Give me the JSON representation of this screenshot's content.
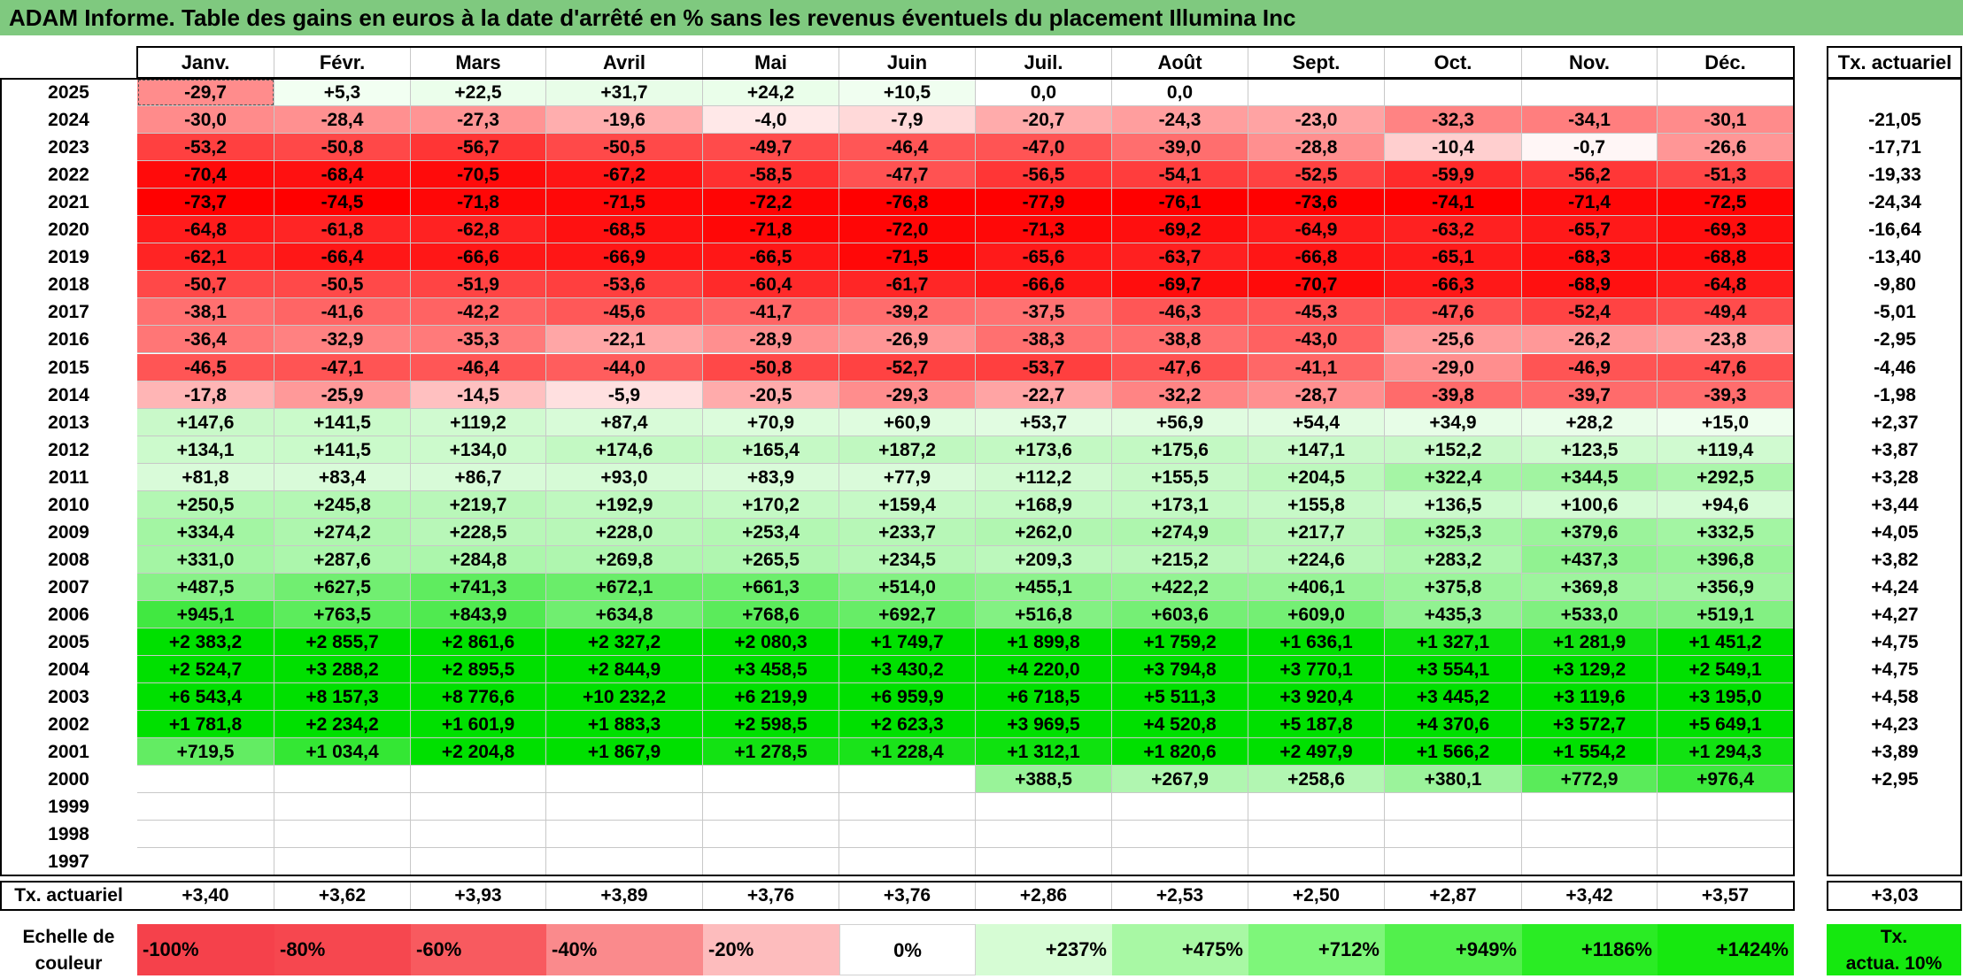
{
  "title": "ADAM Informe. Table des gains en euros à la date d'arrêté en % sans les revenus éventuels du placement Illumina Inc",
  "months": [
    "Janv.",
    "Févr.",
    "Mars",
    "Avril",
    "Mai",
    "Juin",
    "Juil.",
    "Août",
    "Sept.",
    "Oct.",
    "Nov.",
    "Déc."
  ],
  "rate_header": "Tx. actuariel",
  "rows": [
    {
      "year": "2025",
      "values": [
        "-29,7",
        "+5,3",
        "+22,5",
        "+31,7",
        "+24,2",
        "+10,5",
        "0,0",
        "0,0",
        "",
        "",
        "",
        ""
      ],
      "rate": ""
    },
    {
      "year": "2024",
      "values": [
        "-30,0",
        "-28,4",
        "-27,3",
        "-19,6",
        "-4,0",
        "-7,9",
        "-20,7",
        "-24,3",
        "-23,0",
        "-32,3",
        "-34,1",
        "-30,1"
      ],
      "rate": "-21,05"
    },
    {
      "year": "2023",
      "values": [
        "-53,2",
        "-50,8",
        "-56,7",
        "-50,5",
        "-49,7",
        "-46,4",
        "-47,0",
        "-39,0",
        "-28,8",
        "-10,4",
        "-0,7",
        "-26,6"
      ],
      "rate": "-17,71"
    },
    {
      "year": "2022",
      "values": [
        "-70,4",
        "-68,4",
        "-70,5",
        "-67,2",
        "-58,5",
        "-47,7",
        "-56,5",
        "-54,1",
        "-52,5",
        "-59,9",
        "-56,2",
        "-51,3"
      ],
      "rate": "-19,33"
    },
    {
      "year": "2021",
      "values": [
        "-73,7",
        "-74,5",
        "-71,8",
        "-71,5",
        "-72,2",
        "-76,8",
        "-77,9",
        "-76,1",
        "-73,6",
        "-74,1",
        "-71,4",
        "-72,5"
      ],
      "rate": "-24,34"
    },
    {
      "year": "2020",
      "values": [
        "-64,8",
        "-61,8",
        "-62,8",
        "-68,5",
        "-71,8",
        "-72,0",
        "-71,3",
        "-69,2",
        "-64,9",
        "-63,2",
        "-65,7",
        "-69,3"
      ],
      "rate": "-16,64"
    },
    {
      "year": "2019",
      "values": [
        "-62,1",
        "-66,4",
        "-66,6",
        "-66,9",
        "-66,5",
        "-71,5",
        "-65,6",
        "-63,7",
        "-66,8",
        "-65,1",
        "-68,3",
        "-68,8"
      ],
      "rate": "-13,40"
    },
    {
      "year": "2018",
      "values": [
        "-50,7",
        "-50,5",
        "-51,9",
        "-53,6",
        "-60,4",
        "-61,7",
        "-66,6",
        "-69,7",
        "-70,7",
        "-66,3",
        "-68,9",
        "-64,8"
      ],
      "rate": "-9,80"
    },
    {
      "year": "2017",
      "values": [
        "-38,1",
        "-41,6",
        "-42,2",
        "-45,6",
        "-41,7",
        "-39,2",
        "-37,5",
        "-46,3",
        "-45,3",
        "-47,6",
        "-52,4",
        "-49,4"
      ],
      "rate": "-5,01"
    },
    {
      "year": "2016",
      "values": [
        "-36,4",
        "-32,9",
        "-35,3",
        "-22,1",
        "-28,9",
        "-26,9",
        "-38,3",
        "-38,8",
        "-43,0",
        "-25,6",
        "-26,2",
        "-23,8"
      ],
      "rate": "-2,95"
    },
    {
      "year": "2015",
      "values": [
        "-46,5",
        "-47,1",
        "-46,4",
        "-44,0",
        "-50,8",
        "-52,7",
        "-53,7",
        "-47,6",
        "-41,1",
        "-29,0",
        "-46,9",
        "-47,6"
      ],
      "rate": "-4,46"
    },
    {
      "year": "2014",
      "values": [
        "-17,8",
        "-25,9",
        "-14,5",
        "-5,9",
        "-20,5",
        "-29,3",
        "-22,7",
        "-32,2",
        "-28,7",
        "-39,8",
        "-39,7",
        "-39,3"
      ],
      "rate": "-1,98"
    },
    {
      "year": "2013",
      "values": [
        "+147,6",
        "+141,5",
        "+119,2",
        "+87,4",
        "+70,9",
        "+60,9",
        "+53,7",
        "+56,9",
        "+54,4",
        "+34,9",
        "+28,2",
        "+15,0"
      ],
      "rate": "+2,37"
    },
    {
      "year": "2012",
      "values": [
        "+134,1",
        "+141,5",
        "+134,0",
        "+174,6",
        "+165,4",
        "+187,2",
        "+173,6",
        "+175,6",
        "+147,1",
        "+152,2",
        "+123,5",
        "+119,4"
      ],
      "rate": "+3,87"
    },
    {
      "year": "2011",
      "values": [
        "+81,8",
        "+83,4",
        "+86,7",
        "+93,0",
        "+83,9",
        "+77,9",
        "+112,2",
        "+155,5",
        "+204,5",
        "+322,4",
        "+344,5",
        "+292,5"
      ],
      "rate": "+3,28"
    },
    {
      "year": "2010",
      "values": [
        "+250,5",
        "+245,8",
        "+219,7",
        "+192,9",
        "+170,2",
        "+159,4",
        "+168,9",
        "+173,1",
        "+155,8",
        "+136,5",
        "+100,6",
        "+94,6"
      ],
      "rate": "+3,44"
    },
    {
      "year": "2009",
      "values": [
        "+334,4",
        "+274,2",
        "+228,5",
        "+228,0",
        "+253,4",
        "+233,7",
        "+262,0",
        "+274,9",
        "+217,7",
        "+325,3",
        "+379,6",
        "+332,5"
      ],
      "rate": "+4,05"
    },
    {
      "year": "2008",
      "values": [
        "+331,0",
        "+287,6",
        "+284,8",
        "+269,8",
        "+265,5",
        "+234,5",
        "+209,3",
        "+215,2",
        "+224,6",
        "+283,2",
        "+437,3",
        "+396,8"
      ],
      "rate": "+3,82"
    },
    {
      "year": "2007",
      "values": [
        "+487,5",
        "+627,5",
        "+741,3",
        "+672,1",
        "+661,3",
        "+514,0",
        "+455,1",
        "+422,2",
        "+406,1",
        "+375,8",
        "+369,8",
        "+356,9"
      ],
      "rate": "+4,24"
    },
    {
      "year": "2006",
      "values": [
        "+945,1",
        "+763,5",
        "+843,9",
        "+634,8",
        "+768,6",
        "+692,7",
        "+516,8",
        "+603,6",
        "+609,0",
        "+435,3",
        "+533,0",
        "+519,1"
      ],
      "rate": "+4,27"
    },
    {
      "year": "2005",
      "values": [
        "+2 383,2",
        "+2 855,7",
        "+2 861,6",
        "+2 327,2",
        "+2 080,3",
        "+1 749,7",
        "+1 899,8",
        "+1 759,2",
        "+1 636,1",
        "+1 327,1",
        "+1 281,9",
        "+1 451,2"
      ],
      "rate": "+4,75"
    },
    {
      "year": "2004",
      "values": [
        "+2 524,7",
        "+3 288,2",
        "+2 895,5",
        "+2 844,9",
        "+3 458,5",
        "+3 430,2",
        "+4 220,0",
        "+3 794,8",
        "+3 770,1",
        "+3 554,1",
        "+3 129,2",
        "+2 549,1"
      ],
      "rate": "+4,75"
    },
    {
      "year": "2003",
      "values": [
        "+6 543,4",
        "+8 157,3",
        "+8 776,6",
        "+10 232,2",
        "+6 219,9",
        "+6 959,9",
        "+6 718,5",
        "+5 511,3",
        "+3 920,4",
        "+3 445,2",
        "+3 119,6",
        "+3 195,0"
      ],
      "rate": "+4,58"
    },
    {
      "year": "2002",
      "values": [
        "+1 781,8",
        "+2 234,2",
        "+1 601,9",
        "+1 883,3",
        "+2 598,5",
        "+2 623,3",
        "+3 969,5",
        "+4 520,8",
        "+5 187,8",
        "+4 370,6",
        "+3 572,7",
        "+5 649,1"
      ],
      "rate": "+4,23"
    },
    {
      "year": "2001",
      "values": [
        "+719,5",
        "+1 034,4",
        "+2 204,8",
        "+1 867,9",
        "+1 278,5",
        "+1 228,4",
        "+1 312,1",
        "+1 820,6",
        "+2 497,9",
        "+1 566,2",
        "+1 554,2",
        "+1 294,3"
      ],
      "rate": "+3,89"
    },
    {
      "year": "2000",
      "values": [
        "",
        "",
        "",
        "",
        "",
        "",
        "+388,5",
        "+267,9",
        "+258,6",
        "+380,1",
        "+772,9",
        "+976,4"
      ],
      "rate": "+2,95"
    },
    {
      "year": "1999",
      "values": [
        "",
        "",
        "",
        "",
        "",
        "",
        "",
        "",
        "",
        "",
        "",
        ""
      ],
      "rate": ""
    },
    {
      "year": "1998",
      "values": [
        "",
        "",
        "",
        "",
        "",
        "",
        "",
        "",
        "",
        "",
        "",
        ""
      ],
      "rate": ""
    },
    {
      "year": "1997",
      "values": [
        "",
        "",
        "",
        "",
        "",
        "",
        "",
        "",
        "",
        "",
        "",
        ""
      ],
      "rate": ""
    }
  ],
  "footer": {
    "label": "Tx. actuariel",
    "values": [
      "+3,40",
      "+3,62",
      "+3,93",
      "+3,89",
      "+3,76",
      "+3,76",
      "+2,86",
      "+2,53",
      "+2,50",
      "+2,87",
      "+3,42",
      "+3,57"
    ],
    "rate": "+3,03"
  },
  "scale": {
    "label_line1": "Echelle de",
    "label_line2": "couleur",
    "items": [
      {
        "text": "-100%",
        "color": "#f5414b",
        "align": "left"
      },
      {
        "text": "-80%",
        "color": "#f6474f",
        "align": "left"
      },
      {
        "text": "-60%",
        "color": "#f85a5f",
        "align": "left"
      },
      {
        "text": "-40%",
        "color": "#fa8a8c",
        "align": "left"
      },
      {
        "text": "-20%",
        "color": "#fdbcbd",
        "align": "left"
      },
      {
        "text": "0%",
        "color": "#ffffff",
        "align": "center"
      },
      {
        "text": "+237%",
        "color": "#d6fcd4",
        "align": "right"
      },
      {
        "text": "+475%",
        "color": "#a8f8a4",
        "align": "right"
      },
      {
        "text": "+712%",
        "color": "#7ef67a",
        "align": "right"
      },
      {
        "text": "+949%",
        "color": "#52f04c",
        "align": "right"
      },
      {
        "text": "+1186%",
        "color": "#2aec24",
        "align": "right"
      },
      {
        "text": "+1424%",
        "color": "#16e80f",
        "align": "right"
      }
    ],
    "rate_line1": "Tx.",
    "rate_line2": "actua. 10%",
    "rate_color": "#15e80f"
  }
}
